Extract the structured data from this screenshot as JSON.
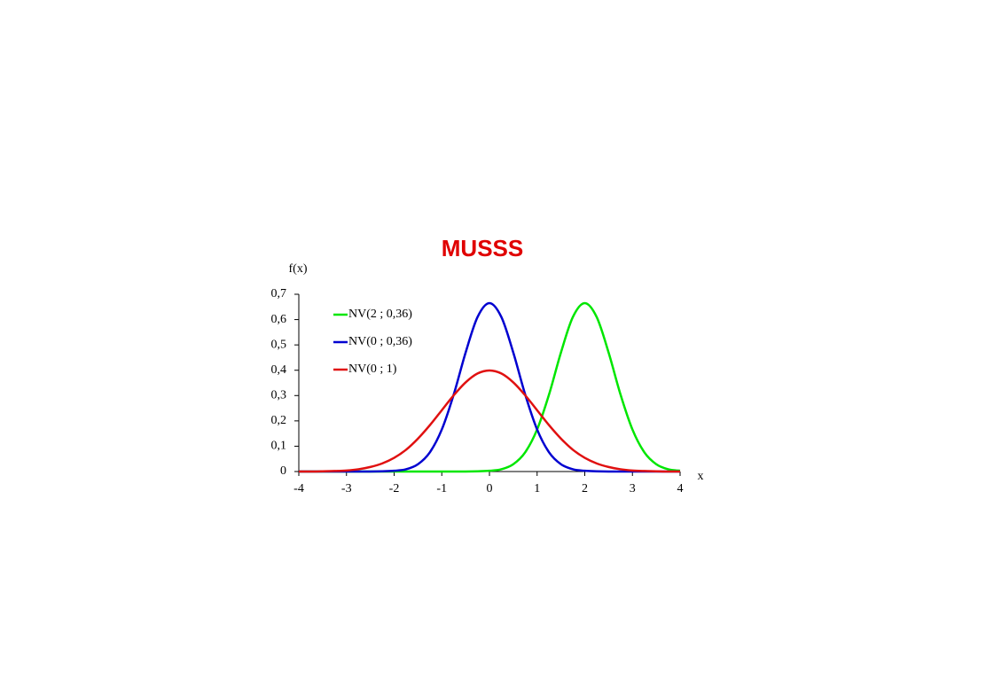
{
  "chart_data": {
    "type": "line",
    "title": "MUSSS",
    "y_label": "f(x)",
    "x_label": "x",
    "x": [
      -4,
      -3.75,
      -3.5,
      -3.25,
      -3,
      -2.75,
      -2.5,
      -2.25,
      -2,
      -1.75,
      -1.5,
      -1.25,
      -1,
      -0.75,
      -0.5,
      -0.25,
      0,
      0.25,
      0.5,
      0.75,
      1,
      1.25,
      1.5,
      1.75,
      2,
      2.25,
      2.5,
      2.75,
      3,
      3.25,
      3.5,
      3.75,
      4
    ],
    "series": [
      {
        "name": "NV(2 ; 0,36)",
        "color": "#00e600",
        "values": [
          0,
          0,
          0,
          0,
          0,
          0,
          0,
          0,
          0,
          0,
          0,
          0,
          0,
          0,
          0,
          0.001,
          0.003,
          0.009,
          0.029,
          0.076,
          0.166,
          0.304,
          0.47,
          0.61,
          0.665,
          0.61,
          0.47,
          0.304,
          0.166,
          0.076,
          0.029,
          0.009,
          0.003
        ]
      },
      {
        "name": "NV(0 ; 0,36)",
        "color": "#0000d0",
        "values": [
          0,
          0,
          0,
          0,
          0,
          0,
          0,
          0.001,
          0.003,
          0.009,
          0.029,
          0.076,
          0.166,
          0.304,
          0.47,
          0.61,
          0.665,
          0.61,
          0.47,
          0.304,
          0.166,
          0.076,
          0.029,
          0.009,
          0.003,
          0.001,
          0,
          0,
          0,
          0,
          0,
          0,
          0
        ]
      },
      {
        "name": "NV(0 ; 1)",
        "color": "#e01010",
        "values": [
          0,
          0,
          0.001,
          0.002,
          0.004,
          0.009,
          0.018,
          0.032,
          0.054,
          0.086,
          0.13,
          0.183,
          0.242,
          0.301,
          0.352,
          0.387,
          0.399,
          0.387,
          0.352,
          0.301,
          0.242,
          0.183,
          0.13,
          0.086,
          0.054,
          0.032,
          0.018,
          0.009,
          0.004,
          0.002,
          0.001,
          0,
          0
        ]
      }
    ],
    "xlim": [
      -4,
      4
    ],
    "xticks": [
      -4,
      -3,
      -2,
      -1,
      0,
      1,
      2,
      3,
      4
    ],
    "ylim": [
      0,
      0.7
    ],
    "yticks": [
      0,
      {
        "value": 0.1,
        "label": "0,1"
      },
      {
        "value": 0.2,
        "label": "0,2"
      },
      {
        "value": 0.3,
        "label": "0,3"
      },
      {
        "value": 0.4,
        "label": "0,4"
      },
      {
        "value": 0.5,
        "label": "0,5"
      },
      {
        "value": 0.6,
        "label": "0,6"
      },
      {
        "value": 0.7,
        "label": "0,7"
      }
    ],
    "legend": "top-left"
  }
}
